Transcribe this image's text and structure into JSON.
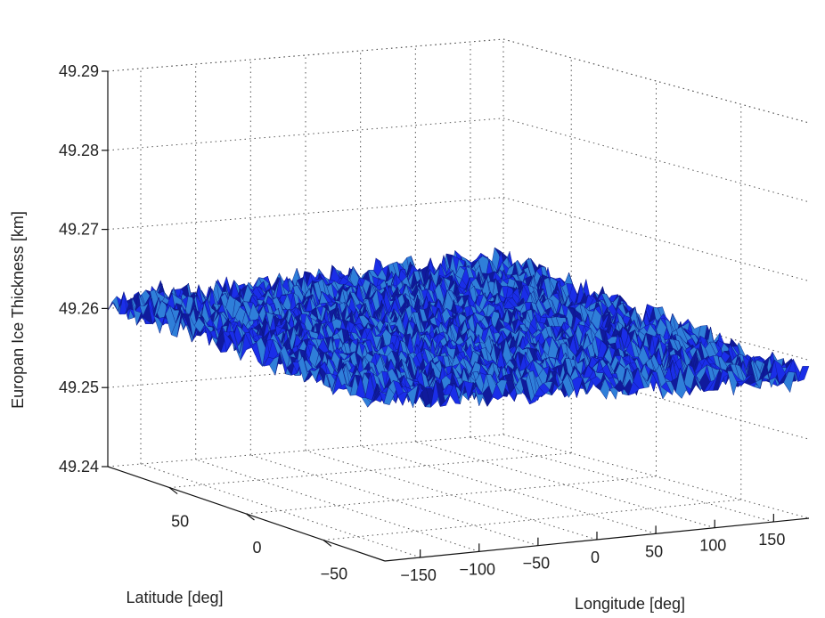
{
  "chart_data": {
    "type": "surface3d",
    "title": "",
    "xlabel": "Longitude [deg]",
    "ylabel": "Latitude [deg]",
    "zlabel": "Europan Ice Thickness [km]",
    "xlim": [
      -180,
      180
    ],
    "ylim": [
      -90,
      90
    ],
    "zlim": [
      49.24,
      49.29
    ],
    "xticks": [
      "−150",
      "−100",
      "−50",
      "0",
      "50",
      "100",
      "150"
    ],
    "yticks": [
      "−50",
      "0",
      "50"
    ],
    "zticks": [
      "49.24",
      "49.25",
      "49.26",
      "49.27",
      "49.28",
      "49.29"
    ],
    "grid": true,
    "surface_color": "#1a2ee8",
    "surface_highlight": "#2f7fd9",
    "surface_shadow": "#101a9c",
    "surface_mean": 49.261,
    "surface_variation": 0.002,
    "corner_values": {
      "lon_-180_lat_-90": 49.2605,
      "lon_180_lat_-90": 49.258,
      "lon_-180_lat_90": 49.261,
      "lon_180_lat_90": 49.262
    }
  }
}
